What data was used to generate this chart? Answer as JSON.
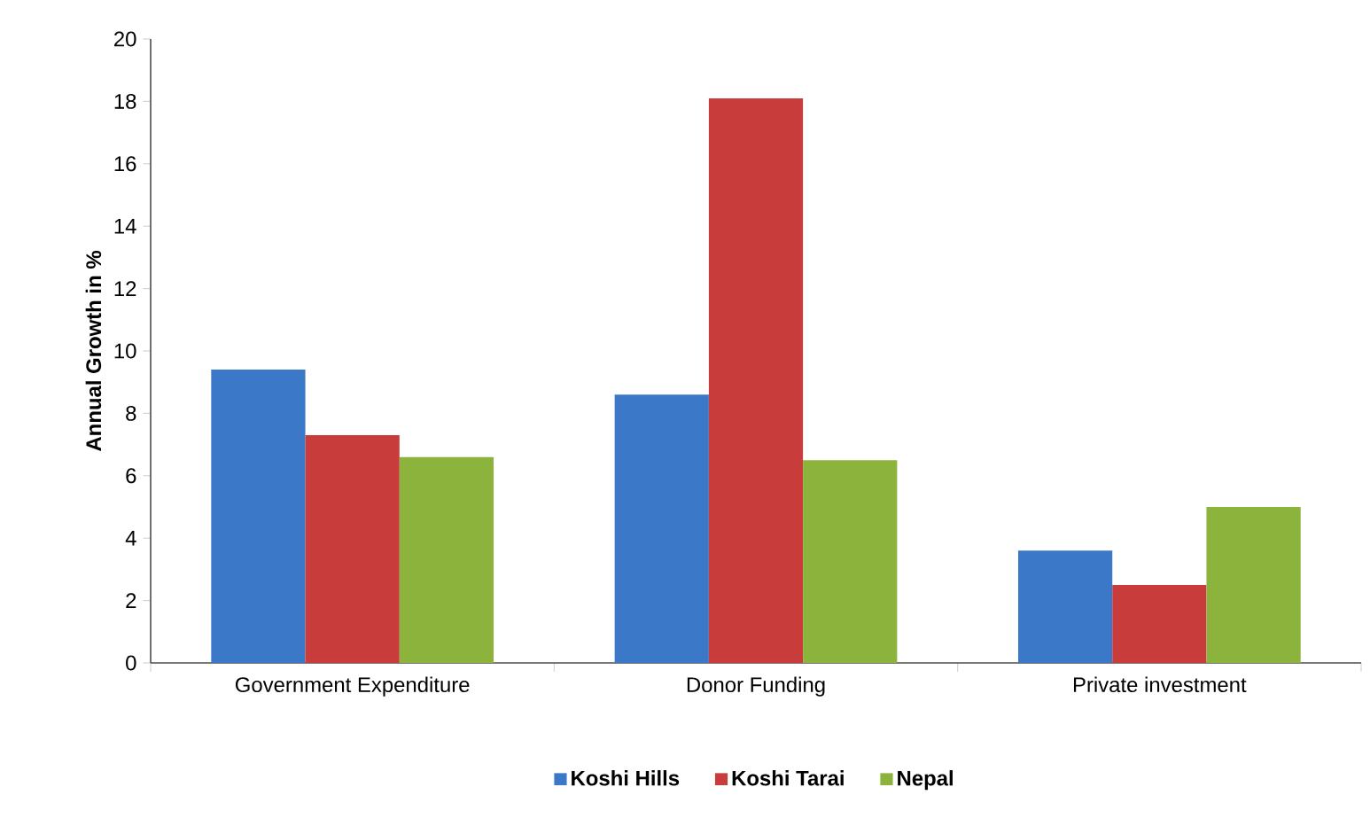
{
  "chart_data": {
    "type": "bar",
    "ylabel": "Annual Growth in %",
    "categories": [
      "Government Expenditure",
      "Donor Funding",
      "Private investment"
    ],
    "series": [
      {
        "name": "Koshi Hills",
        "color": "#3c78c8",
        "values": [
          9.4,
          8.6,
          3.6
        ]
      },
      {
        "name": "Koshi Tarai",
        "color": "#c83c3c",
        "values": [
          7.3,
          18.1,
          2.5
        ]
      },
      {
        "name": "Nepal",
        "color": "#8cb43c",
        "values": [
          6.6,
          6.5,
          5.0
        ]
      }
    ],
    "ylim": [
      0,
      20
    ],
    "yticks": [
      0,
      2,
      4,
      6,
      8,
      10,
      12,
      14,
      16,
      18,
      20
    ],
    "grid": false,
    "legend": "bottom"
  }
}
